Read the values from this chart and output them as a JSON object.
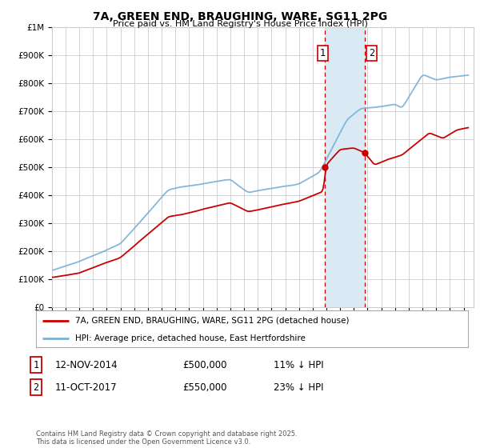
{
  "title": "7A, GREEN END, BRAUGHING, WARE, SG11 2PG",
  "subtitle": "Price paid vs. HM Land Registry's House Price Index (HPI)",
  "ylabel_values": [
    "£0",
    "£100K",
    "£200K",
    "£300K",
    "£400K",
    "£500K",
    "£600K",
    "£700K",
    "£800K",
    "£900K",
    "£1M"
  ],
  "ylim": [
    0,
    1000000
  ],
  "yticks": [
    0,
    100000,
    200000,
    300000,
    400000,
    500000,
    600000,
    700000,
    800000,
    900000,
    1000000
  ],
  "xlim_start": 1995.0,
  "xlim_end": 2025.7,
  "sale1_date": 2014.87,
  "sale1_price": 500000,
  "sale2_date": 2017.78,
  "sale2_price": 550000,
  "shaded_region_start": 2014.87,
  "shaded_region_end": 2017.78,
  "red_line_color": "#cc0000",
  "blue_line_color": "#7ab0d4",
  "shade_color": "#daeaf5",
  "grid_color": "#cccccc",
  "background_color": "#ffffff",
  "legend1_text": "7A, GREEN END, BRAUGHING, WARE, SG11 2PG (detached house)",
  "legend2_text": "HPI: Average price, detached house, East Hertfordshire",
  "table_row1": [
    "1",
    "12-NOV-2014",
    "£500,000",
    "11% ↓ HPI"
  ],
  "table_row2": [
    "2",
    "11-OCT-2017",
    "£550,000",
    "23% ↓ HPI"
  ],
  "footnote": "Contains HM Land Registry data © Crown copyright and database right 2025.\nThis data is licensed under the Open Government Licence v3.0."
}
